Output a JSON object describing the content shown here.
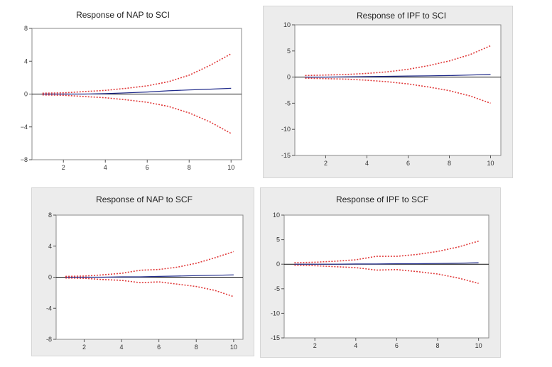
{
  "chart_data": [
    {
      "type": "line",
      "title": "Response of NAP to SCI",
      "x": [
        1,
        2,
        3,
        4,
        5,
        6,
        7,
        8,
        9,
        10
      ],
      "xticks": [
        "2",
        "4",
        "6",
        "8",
        "10"
      ],
      "xlim": [
        0.5,
        10.5
      ],
      "yticks": [
        "8",
        "4",
        "0",
        "−4",
        "−8"
      ],
      "ylim": [
        -8,
        8
      ],
      "zero_line": true,
      "series": [
        {
          "values": [
            0,
            0,
            0,
            0.05,
            0.15,
            0.25,
            0.4,
            0.5,
            0.6,
            0.7
          ],
          "style": "solid",
          "color": "#1f2a8a"
        },
        {
          "values": [
            0.1,
            0.15,
            0.3,
            0.45,
            0.7,
            1.0,
            1.5,
            2.3,
            3.5,
            4.9
          ],
          "style": "dotted",
          "color": "#e03a3a"
        },
        {
          "values": [
            -0.1,
            -0.15,
            -0.3,
            -0.45,
            -0.7,
            -1.0,
            -1.5,
            -2.3,
            -3.4,
            -4.8
          ],
          "style": "dotted",
          "color": "#e03a3a"
        }
      ]
    },
    {
      "type": "line",
      "title": "Response of IPF to SCI",
      "x": [
        1,
        2,
        3,
        4,
        5,
        6,
        7,
        8,
        9,
        10
      ],
      "xticks": [
        "2",
        "4",
        "6",
        "8",
        "10"
      ],
      "xlim": [
        0.5,
        10.5
      ],
      "yticks": [
        "10",
        "5",
        "0",
        "-5",
        "-10",
        "-15"
      ],
      "ylim": [
        -15,
        10
      ],
      "zero_line": true,
      "series": [
        {
          "values": [
            0,
            0,
            0.05,
            0.1,
            0.15,
            0.2,
            0.25,
            0.3,
            0.4,
            0.5
          ],
          "style": "solid",
          "color": "#1f2a8a"
        },
        {
          "values": [
            0.3,
            0.4,
            0.5,
            0.7,
            1.0,
            1.5,
            2.2,
            3.1,
            4.3,
            6.0
          ],
          "style": "dotted",
          "color": "#e03a3a"
        },
        {
          "values": [
            -0.2,
            -0.3,
            -0.4,
            -0.6,
            -0.9,
            -1.3,
            -1.9,
            -2.6,
            -3.6,
            -5.0
          ],
          "style": "dotted",
          "color": "#e03a3a"
        }
      ]
    },
    {
      "type": "line",
      "title": "Response of NAP to SCF",
      "x": [
        1,
        2,
        3,
        4,
        5,
        6,
        7,
        8,
        9,
        10
      ],
      "xticks": [
        "2",
        "4",
        "6",
        "8",
        "10"
      ],
      "xlim": [
        0.5,
        10.5
      ],
      "yticks": [
        "8",
        "4",
        "0",
        "-4",
        "-8"
      ],
      "ylim": [
        -8,
        8
      ],
      "zero_line": true,
      "series": [
        {
          "values": [
            0,
            0,
            0,
            0.05,
            0.05,
            0.1,
            0.15,
            0.2,
            0.25,
            0.3
          ],
          "style": "solid",
          "color": "#1f2a8a"
        },
        {
          "values": [
            0.1,
            0.15,
            0.3,
            0.5,
            0.9,
            1.0,
            1.3,
            1.8,
            2.5,
            3.3
          ],
          "style": "dotted",
          "color": "#e03a3a"
        },
        {
          "values": [
            -0.1,
            -0.15,
            -0.3,
            -0.4,
            -0.7,
            -0.6,
            -0.9,
            -1.2,
            -1.7,
            -2.5
          ],
          "style": "dotted",
          "color": "#e03a3a"
        }
      ]
    },
    {
      "type": "line",
      "title": "Response of IPF to SCF",
      "x": [
        1,
        2,
        3,
        4,
        5,
        6,
        7,
        8,
        9,
        10
      ],
      "xticks": [
        "2",
        "4",
        "6",
        "8",
        "10"
      ],
      "xlim": [
        0.5,
        10.5
      ],
      "yticks": [
        "10",
        "5",
        "0",
        "-5",
        "-10",
        "-15"
      ],
      "ylim": [
        -15,
        10
      ],
      "zero_line": true,
      "series": [
        {
          "values": [
            0,
            0,
            0,
            0.05,
            0.05,
            0.1,
            0.1,
            0.15,
            0.2,
            0.3
          ],
          "style": "solid",
          "color": "#1f2a8a"
        },
        {
          "values": [
            0.3,
            0.4,
            0.6,
            0.9,
            1.6,
            1.6,
            2.0,
            2.6,
            3.5,
            4.7
          ],
          "style": "dotted",
          "color": "#e03a3a"
        },
        {
          "values": [
            -0.2,
            -0.3,
            -0.5,
            -0.7,
            -1.2,
            -1.1,
            -1.5,
            -2.0,
            -2.8,
            -3.9
          ],
          "style": "dotted",
          "color": "#e03a3a"
        }
      ]
    }
  ]
}
